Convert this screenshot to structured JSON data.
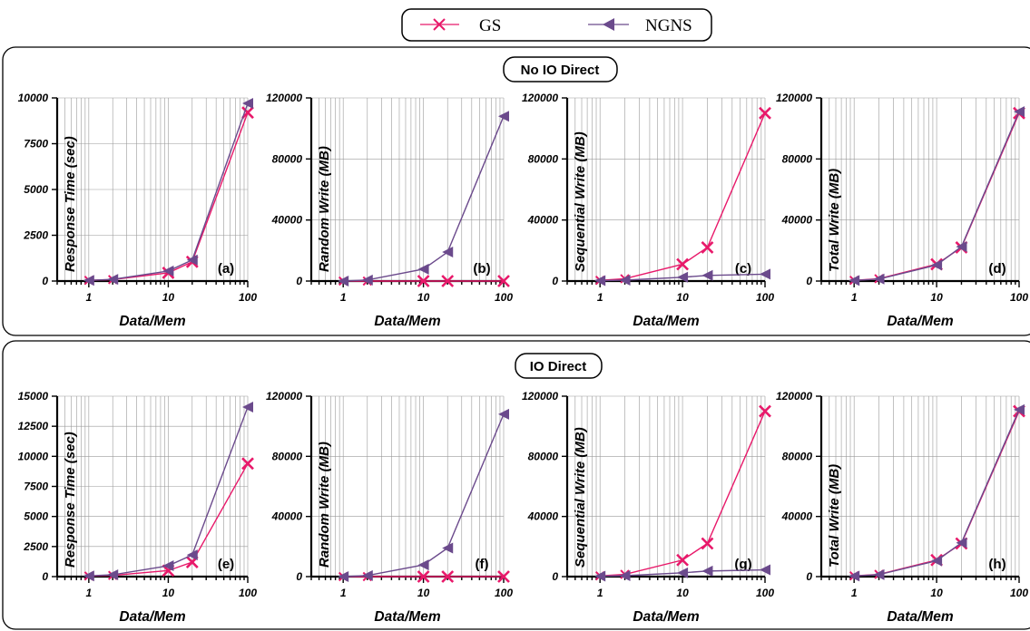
{
  "legend": [
    {
      "name": "GS",
      "color": "#e8196a",
      "marker": "x"
    },
    {
      "name": "NGNS",
      "color": "#6b4a8c",
      "marker": "triangle-left"
    }
  ],
  "groups": [
    {
      "title": "No IO Direct"
    },
    {
      "title": "IO Direct"
    }
  ],
  "chart_data": [
    {
      "panel": "(a)",
      "group": "No IO Direct",
      "type": "line",
      "xscale": "log",
      "grid": true,
      "xlabel": "Data/Mem",
      "ylabel": "Response Time (sec)",
      "xticks": [
        "1",
        "10",
        "100"
      ],
      "yticks": [
        "0",
        "2500",
        "5000",
        "7500",
        "10000"
      ],
      "ylim": [
        0,
        10000
      ],
      "x": [
        1,
        2,
        10,
        20,
        100
      ],
      "series": [
        {
          "name": "GS",
          "values": [
            40,
            80,
            450,
            1050,
            9200
          ]
        },
        {
          "name": "NGNS",
          "values": [
            40,
            90,
            550,
            1150,
            9700
          ]
        }
      ]
    },
    {
      "panel": "(b)",
      "group": "No IO Direct",
      "type": "line",
      "xscale": "log",
      "grid": true,
      "xlabel": "Data/Mem",
      "ylabel": "Random Write (MB)",
      "xticks": [
        "1",
        "10",
        "100"
      ],
      "yticks": [
        "0",
        "40000",
        "80000",
        "120000"
      ],
      "ylim": [
        0,
        120000
      ],
      "x": [
        1,
        2,
        10,
        20,
        100
      ],
      "series": [
        {
          "name": "GS",
          "values": [
            0,
            0,
            0,
            0,
            0
          ]
        },
        {
          "name": "NGNS",
          "values": [
            0,
            700,
            7800,
            19000,
            108000
          ]
        }
      ]
    },
    {
      "panel": "(c)",
      "group": "No IO Direct",
      "type": "line",
      "xscale": "log",
      "grid": true,
      "xlabel": "Data/Mem",
      "ylabel": "Sequential Write (MB)",
      "xticks": [
        "1",
        "10",
        "100"
      ],
      "yticks": [
        "0",
        "40000",
        "80000",
        "120000"
      ],
      "ylim": [
        0,
        120000
      ],
      "x": [
        1,
        2,
        10,
        20,
        100
      ],
      "series": [
        {
          "name": "GS",
          "values": [
            500,
            1500,
            11000,
            22000,
            110000
          ]
        },
        {
          "name": "NGNS",
          "values": [
            300,
            600,
            2500,
            3700,
            4500
          ]
        }
      ]
    },
    {
      "panel": "(d)",
      "group": "No IO Direct",
      "type": "line",
      "xscale": "log",
      "grid": true,
      "xlabel": "Data/Mem",
      "ylabel": "Total Write (MB)",
      "xticks": [
        "1",
        "10",
        "100"
      ],
      "yticks": [
        "0",
        "40000",
        "80000",
        "120000"
      ],
      "ylim": [
        0,
        120000
      ],
      "x": [
        1,
        2,
        10,
        20,
        100
      ],
      "series": [
        {
          "name": "GS",
          "values": [
            500,
            1500,
            11000,
            22000,
            110000
          ]
        },
        {
          "name": "NGNS",
          "values": [
            400,
            1300,
            10500,
            22500,
            111000
          ]
        }
      ]
    },
    {
      "panel": "(e)",
      "group": "IO Direct",
      "type": "line",
      "xscale": "log",
      "grid": true,
      "xlabel": "Data/Mem",
      "ylabel": "Response Time (sec)",
      "xticks": [
        "1",
        "10",
        "100"
      ],
      "yticks": [
        "0",
        "2500",
        "5000",
        "7500",
        "10000",
        "12500",
        "15000"
      ],
      "ylim": [
        0,
        15000
      ],
      "x": [
        1,
        2,
        10,
        20,
        100
      ],
      "series": [
        {
          "name": "GS",
          "values": [
            50,
            100,
            500,
            1200,
            9400
          ]
        },
        {
          "name": "NGNS",
          "values": [
            60,
            150,
            900,
            1800,
            14100
          ]
        }
      ]
    },
    {
      "panel": "(f)",
      "group": "IO Direct",
      "type": "line",
      "xscale": "log",
      "grid": true,
      "xlabel": "Data/Mem",
      "ylabel": "Random Write (MB)",
      "xticks": [
        "1",
        "10",
        "100"
      ],
      "yticks": [
        "0",
        "40000",
        "80000",
        "120000"
      ],
      "ylim": [
        0,
        120000
      ],
      "x": [
        1,
        2,
        10,
        20,
        100
      ],
      "series": [
        {
          "name": "GS",
          "values": [
            0,
            0,
            0,
            0,
            0
          ]
        },
        {
          "name": "NGNS",
          "values": [
            0,
            700,
            7800,
            19000,
            108000
          ]
        }
      ]
    },
    {
      "panel": "(g)",
      "group": "IO Direct",
      "type": "line",
      "xscale": "log",
      "grid": true,
      "xlabel": "Data/Mem",
      "ylabel": "Sequential Write (MB)",
      "xticks": [
        "1",
        "10",
        "100"
      ],
      "yticks": [
        "0",
        "40000",
        "80000",
        "120000"
      ],
      "ylim": [
        0,
        120000
      ],
      "x": [
        1,
        2,
        10,
        20,
        100
      ],
      "series": [
        {
          "name": "GS",
          "values": [
            500,
            1500,
            11000,
            22000,
            110000
          ]
        },
        {
          "name": "NGNS",
          "values": [
            300,
            600,
            2500,
            3700,
            4500
          ]
        }
      ]
    },
    {
      "panel": "(h)",
      "group": "IO Direct",
      "type": "line",
      "xscale": "log",
      "grid": true,
      "xlabel": "Data/Mem",
      "ylabel": "Total Write (MB)",
      "xticks": [
        "1",
        "10",
        "100"
      ],
      "yticks": [
        "0",
        "40000",
        "80000",
        "120000"
      ],
      "ylim": [
        0,
        120000
      ],
      "x": [
        1,
        2,
        10,
        20,
        100
      ],
      "series": [
        {
          "name": "GS",
          "values": [
            500,
            1500,
            11000,
            22000,
            110000
          ]
        },
        {
          "name": "NGNS",
          "values": [
            400,
            1300,
            10500,
            22500,
            111000
          ]
        }
      ]
    }
  ]
}
